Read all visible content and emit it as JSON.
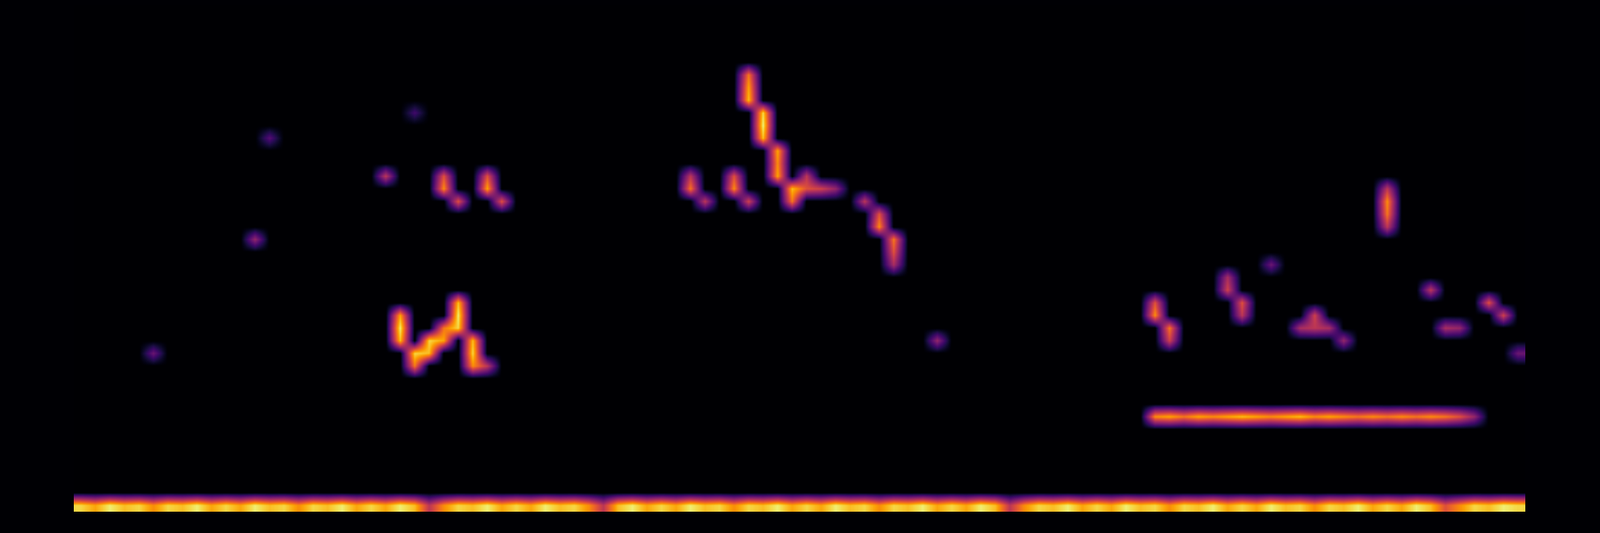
{
  "chart_data": {
    "type": "heatmap",
    "color": "inferno",
    "tick_labels": false,
    "xlim": [
      0,
      100
    ],
    "ylim": [
      0,
      40
    ],
    "zlim": [
      0,
      1
    ],
    "cells": [
      [
        0,
        0,
        0.9
      ],
      [
        1,
        0,
        0.8
      ],
      [
        2,
        0,
        0.95
      ],
      [
        3,
        0,
        0.85
      ],
      [
        4,
        0,
        0.9
      ],
      [
        5,
        0,
        0.75
      ],
      [
        6,
        0,
        0.9
      ],
      [
        7,
        0,
        0.85
      ],
      [
        8,
        0,
        0.95
      ],
      [
        9,
        0,
        0.8
      ],
      [
        10,
        0,
        0.9
      ],
      [
        11,
        0,
        0.8
      ],
      [
        12,
        0,
        0.95
      ],
      [
        13,
        0,
        0.85
      ],
      [
        14,
        0,
        0.9
      ],
      [
        15,
        0,
        0.75
      ],
      [
        16,
        0,
        0.9
      ],
      [
        17,
        0,
        0.85
      ],
      [
        18,
        0,
        0.95
      ],
      [
        19,
        0,
        0.8
      ],
      [
        20,
        0,
        0.9
      ],
      [
        21,
        0,
        0.8
      ],
      [
        22,
        0,
        0.95
      ],
      [
        23,
        0,
        0.85
      ],
      [
        24,
        0,
        0.5
      ],
      [
        25,
        0,
        0.75
      ],
      [
        26,
        0,
        0.9
      ],
      [
        27,
        0,
        0.85
      ],
      [
        28,
        0,
        0.95
      ],
      [
        29,
        0,
        0.8
      ],
      [
        30,
        0,
        0.9
      ],
      [
        31,
        0,
        0.8
      ],
      [
        32,
        0,
        0.95
      ],
      [
        33,
        0,
        0.85
      ],
      [
        34,
        0,
        0.9
      ],
      [
        35,
        0,
        0.75
      ],
      [
        36,
        0,
        0.5
      ],
      [
        37,
        0,
        0.85
      ],
      [
        38,
        0,
        0.95
      ],
      [
        39,
        0,
        0.8
      ],
      [
        40,
        0,
        0.9
      ],
      [
        41,
        0,
        0.8
      ],
      [
        42,
        0,
        0.95
      ],
      [
        43,
        0,
        0.85
      ],
      [
        44,
        0,
        0.9
      ],
      [
        45,
        0,
        0.75
      ],
      [
        46,
        0,
        0.9
      ],
      [
        47,
        0,
        0.85
      ],
      [
        48,
        0,
        0.95
      ],
      [
        49,
        0,
        0.8
      ],
      [
        50,
        0,
        0.9
      ],
      [
        51,
        0,
        0.8
      ],
      [
        52,
        0,
        0.95
      ],
      [
        53,
        0,
        0.85
      ],
      [
        54,
        0,
        0.9
      ],
      [
        55,
        0,
        0.75
      ],
      [
        56,
        0,
        0.9
      ],
      [
        57,
        0,
        0.85
      ],
      [
        58,
        0,
        0.95
      ],
      [
        59,
        0,
        0.8
      ],
      [
        60,
        0,
        0.9
      ],
      [
        61,
        0,
        0.8
      ],
      [
        62,
        0,
        0.95
      ],
      [
        63,
        0,
        0.85
      ],
      [
        64,
        0,
        0.5
      ],
      [
        65,
        0,
        0.75
      ],
      [
        66,
        0,
        0.9
      ],
      [
        67,
        0,
        0.85
      ],
      [
        68,
        0,
        0.95
      ],
      [
        69,
        0,
        0.8
      ],
      [
        70,
        0,
        0.9
      ],
      [
        71,
        0,
        0.8
      ],
      [
        72,
        0,
        0.95
      ],
      [
        73,
        0,
        0.85
      ],
      [
        74,
        0,
        0.9
      ],
      [
        75,
        0,
        0.75
      ],
      [
        76,
        0,
        0.9
      ],
      [
        77,
        0,
        0.85
      ],
      [
        78,
        0,
        0.95
      ],
      [
        79,
        0,
        0.8
      ],
      [
        80,
        0,
        0.9
      ],
      [
        81,
        0,
        0.8
      ],
      [
        82,
        0,
        0.95
      ],
      [
        83,
        0,
        0.85
      ],
      [
        84,
        0,
        0.9
      ],
      [
        85,
        0,
        0.75
      ],
      [
        86,
        0,
        0.9
      ],
      [
        87,
        0,
        0.85
      ],
      [
        88,
        0,
        0.95
      ],
      [
        89,
        0,
        0.8
      ],
      [
        90,
        0,
        0.9
      ],
      [
        91,
        0,
        0.8
      ],
      [
        92,
        0,
        0.95
      ],
      [
        93,
        0,
        0.85
      ],
      [
        94,
        0,
        0.6
      ],
      [
        95,
        0,
        0.75
      ],
      [
        96,
        0,
        0.9
      ],
      [
        97,
        0,
        0.85
      ],
      [
        98,
        0,
        0.95
      ],
      [
        99,
        0,
        0.9
      ],
      [
        74,
        7,
        0.75
      ],
      [
        75,
        7,
        0.8
      ],
      [
        76,
        7,
        0.7
      ],
      [
        77,
        7,
        0.8
      ],
      [
        78,
        7,
        0.75
      ],
      [
        79,
        7,
        0.8
      ],
      [
        80,
        7,
        0.85
      ],
      [
        81,
        7,
        0.8
      ],
      [
        82,
        7,
        0.75
      ],
      [
        83,
        7,
        0.8
      ],
      [
        84,
        7,
        0.85
      ],
      [
        85,
        7,
        0.75
      ],
      [
        86,
        7,
        0.8
      ],
      [
        87,
        7,
        0.75
      ],
      [
        88,
        7,
        0.7
      ],
      [
        89,
        7,
        0.75
      ],
      [
        90,
        7,
        0.7
      ],
      [
        91,
        7,
        0.75
      ],
      [
        92,
        7,
        0.7
      ],
      [
        93,
        7,
        0.75
      ],
      [
        94,
        7,
        0.7
      ],
      [
        95,
        7,
        0.6
      ],
      [
        96,
        7,
        0.4
      ],
      [
        22,
        15,
        0.8
      ],
      [
        22,
        14,
        0.95
      ],
      [
        22,
        13,
        0.85
      ],
      [
        23,
        12,
        0.9
      ],
      [
        23,
        11,
        0.7
      ],
      [
        24,
        12,
        0.85
      ],
      [
        24,
        13,
        0.9
      ],
      [
        25,
        13,
        0.8
      ],
      [
        25,
        14,
        0.7
      ],
      [
        26,
        16,
        0.85
      ],
      [
        26,
        15,
        0.95
      ],
      [
        26,
        14,
        0.9
      ],
      [
        27,
        13,
        0.85
      ],
      [
        27,
        12,
        0.9
      ],
      [
        27,
        11,
        0.75
      ],
      [
        28,
        11,
        0.5
      ],
      [
        21,
        26,
        0.5
      ],
      [
        25,
        26,
        0.6
      ],
      [
        25,
        25,
        0.75
      ],
      [
        26,
        24,
        0.6
      ],
      [
        28,
        26,
        0.6
      ],
      [
        28,
        25,
        0.8
      ],
      [
        29,
        24,
        0.6
      ],
      [
        42,
        26,
        0.5
      ],
      [
        42,
        25,
        0.7
      ],
      [
        43,
        24,
        0.5
      ],
      [
        45,
        26,
        0.6
      ],
      [
        45,
        25,
        0.75
      ],
      [
        46,
        24,
        0.55
      ],
      [
        12,
        21,
        0.4
      ],
      [
        13,
        29,
        0.25
      ],
      [
        23,
        31,
        0.2
      ],
      [
        5,
        12,
        0.3
      ],
      [
        59,
        13,
        0.4
      ],
      [
        46,
        34,
        0.7
      ],
      [
        46,
        33,
        0.8
      ],
      [
        46,
        32,
        0.85
      ],
      [
        47,
        31,
        0.9
      ],
      [
        47,
        30,
        0.95
      ],
      [
        47,
        29,
        0.85
      ],
      [
        48,
        28,
        0.8
      ],
      [
        48,
        27,
        0.75
      ],
      [
        48,
        26,
        0.8
      ],
      [
        49,
        25,
        0.85
      ],
      [
        49,
        24,
        0.7
      ],
      [
        50,
        25,
        0.6
      ],
      [
        50,
        26,
        0.5
      ],
      [
        51,
        25,
        0.55
      ],
      [
        52,
        25,
        0.4
      ],
      [
        54,
        24,
        0.5
      ],
      [
        55,
        23,
        0.6
      ],
      [
        55,
        22,
        0.75
      ],
      [
        56,
        21,
        0.7
      ],
      [
        56,
        20,
        0.6
      ],
      [
        56,
        19,
        0.45
      ],
      [
        74,
        16,
        0.6
      ],
      [
        74,
        15,
        0.75
      ],
      [
        75,
        14,
        0.7
      ],
      [
        75,
        13,
        0.55
      ],
      [
        79,
        18,
        0.45
      ],
      [
        79,
        17,
        0.55
      ],
      [
        80,
        16,
        0.6
      ],
      [
        80,
        15,
        0.5
      ],
      [
        84,
        14,
        0.45
      ],
      [
        85,
        14,
        0.5
      ],
      [
        85,
        15,
        0.55
      ],
      [
        86,
        14,
        0.45
      ],
      [
        87,
        13,
        0.4
      ],
      [
        82,
        19,
        0.3
      ],
      [
        93,
        17,
        0.5
      ],
      [
        94,
        14,
        0.45
      ],
      [
        95,
        14,
        0.4
      ],
      [
        97,
        16,
        0.6
      ],
      [
        98,
        15,
        0.55
      ],
      [
        99,
        12,
        0.3
      ],
      [
        90,
        25,
        0.5
      ],
      [
        90,
        24,
        0.75
      ],
      [
        90,
        23,
        0.7
      ],
      [
        90,
        22,
        0.5
      ]
    ]
  }
}
